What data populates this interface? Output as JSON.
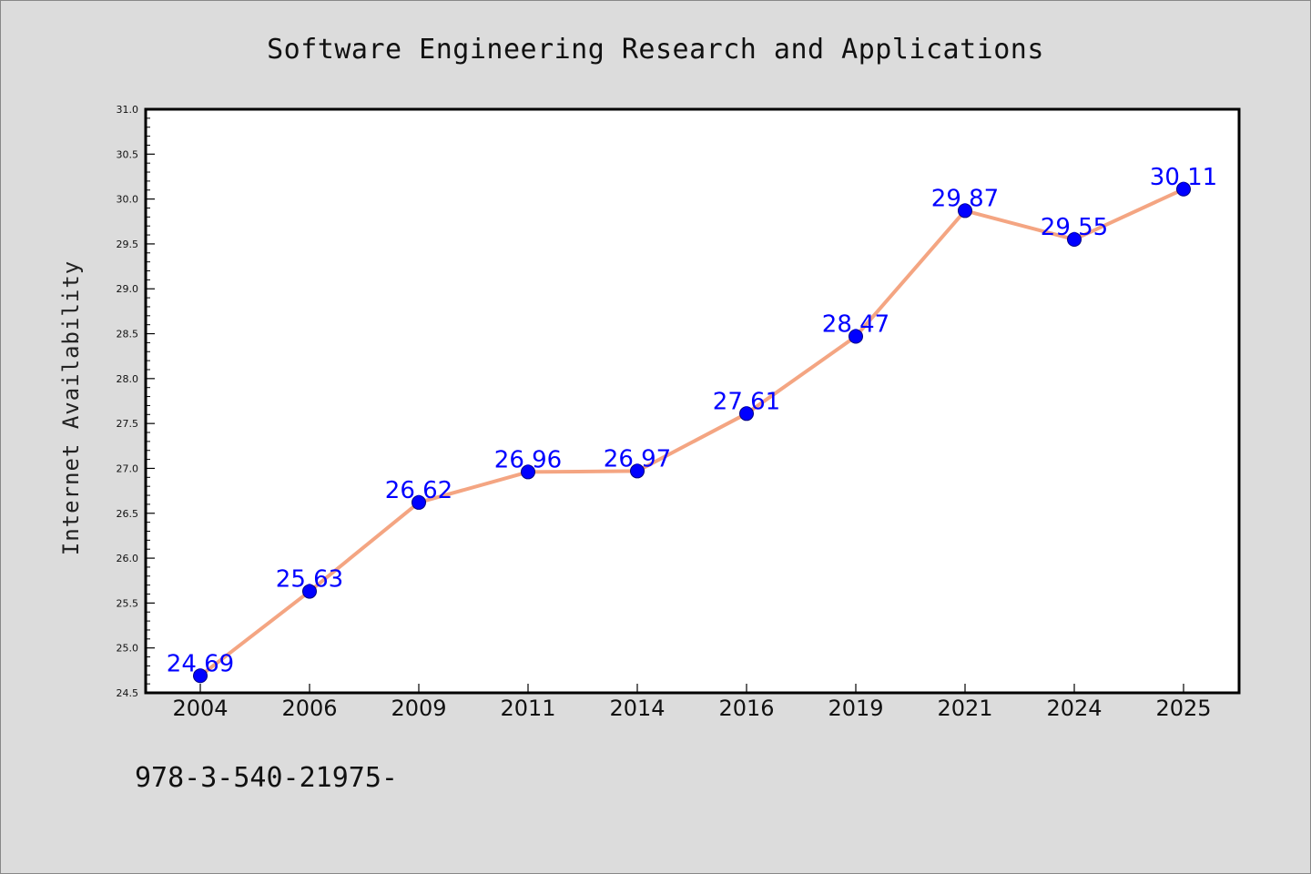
{
  "chart_data": {
    "type": "line",
    "title": "Software Engineering Research and Applications",
    "ylabel": "Internet Availability",
    "xlabel": "",
    "categories": [
      "2004",
      "2006",
      "2009",
      "2011",
      "2014",
      "2016",
      "2019",
      "2021",
      "2024",
      "2025"
    ],
    "values": [
      24.69,
      25.63,
      26.62,
      26.96,
      26.97,
      27.61,
      28.47,
      29.87,
      29.55,
      30.11
    ],
    "data_labels": [
      "24.69",
      "25.63",
      "26.62",
      "26.96",
      "26.97",
      "27.61",
      "28.47",
      "29.87",
      "29.55",
      "30.11"
    ],
    "ylim": [
      24.5,
      31.0
    ],
    "yticks": [
      "24.5",
      "25.0",
      "25.5",
      "26.0",
      "26.5",
      "27.0",
      "27.5",
      "28.0",
      "28.5",
      "29.0",
      "29.5",
      "30.0",
      "30.5",
      "31.0"
    ],
    "grid": false,
    "legend": "none",
    "colors": {
      "line": "#f4a582",
      "marker": "#0000ff",
      "marker_edge": "#000080",
      "data_label": "#0000ff",
      "background": "#dcdcdc",
      "plot_background": "#ffffff"
    }
  },
  "footer": {
    "text": "978-3-540-21975-"
  }
}
